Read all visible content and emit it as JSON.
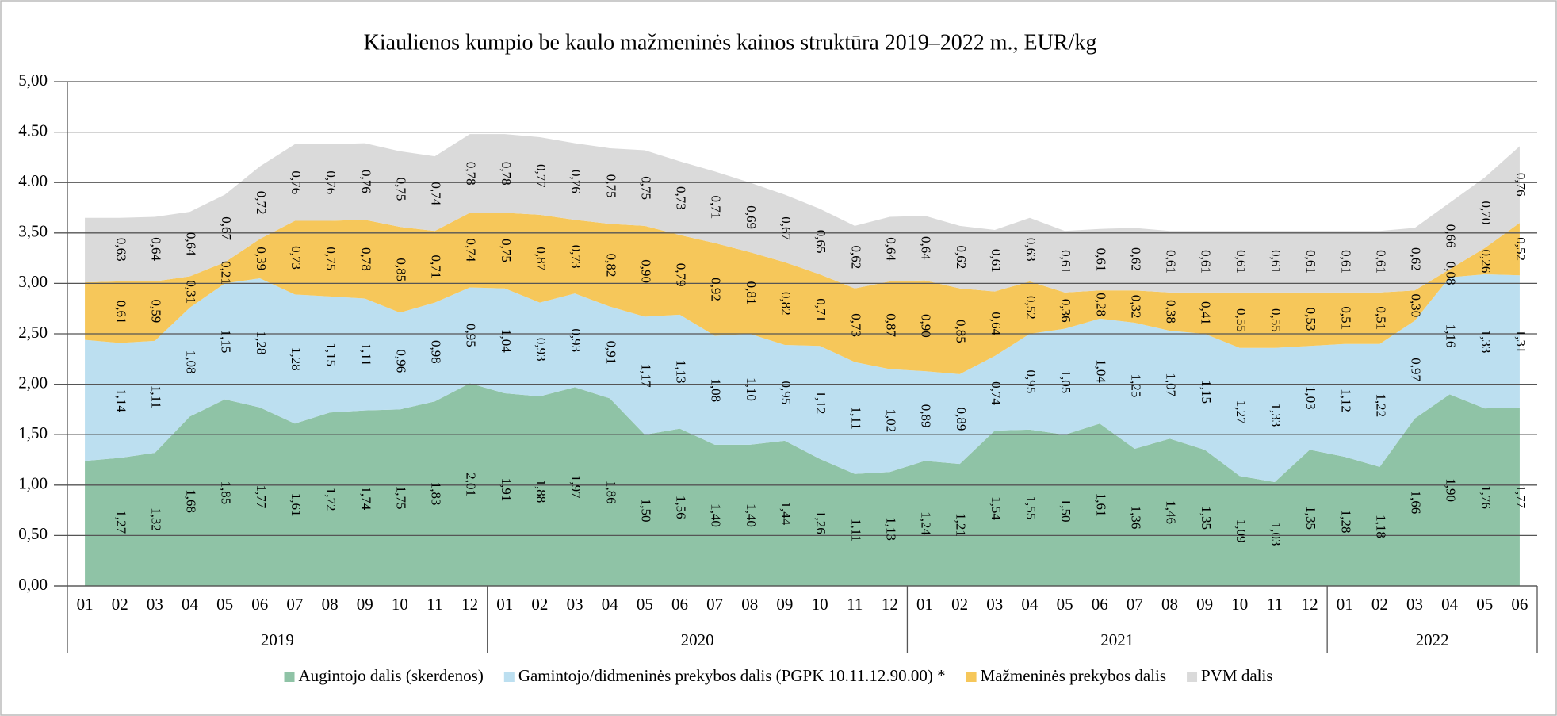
{
  "chart_data": {
    "type": "stacked_area",
    "title": "Kiaulienos kumpio be kaulo mažmeninės kainos struktūra 2019–2022 m., EUR/kg",
    "categories": [
      "01",
      "02",
      "03",
      "04",
      "05",
      "06",
      "07",
      "08",
      "09",
      "10",
      "11",
      "12",
      "01",
      "02",
      "03",
      "04",
      "05",
      "06",
      "07",
      "08",
      "09",
      "10",
      "11",
      "12",
      "01",
      "02",
      "03",
      "04",
      "05",
      "06",
      "07",
      "08",
      "09",
      "10",
      "11",
      "12",
      "01",
      "02",
      "03",
      "04",
      "05",
      "06"
    ],
    "year_groups": [
      "2019",
      "2020",
      "2021",
      "2022"
    ],
    "series": [
      {
        "name": "Augintojo dalis (skerdenos)",
        "color": "#8fc3a6",
        "values": [
          1.24,
          1.27,
          1.32,
          1.68,
          1.85,
          1.77,
          1.61,
          1.72,
          1.74,
          1.75,
          1.83,
          2.01,
          1.91,
          1.88,
          1.97,
          1.86,
          1.5,
          1.56,
          1.4,
          1.4,
          1.44,
          1.26,
          1.11,
          1.13,
          1.24,
          1.21,
          1.54,
          1.55,
          1.5,
          1.61,
          1.36,
          1.46,
          1.35,
          1.09,
          1.03,
          1.35,
          1.28,
          1.18,
          1.66,
          1.9,
          1.76,
          1.77
        ],
        "value_labels": [
          null,
          "1,27",
          "1,32",
          "1,68",
          "1,85",
          "1,77",
          "1,61",
          "1,72",
          "1,74",
          "1,75",
          "1,83",
          "2,01",
          "1,91",
          "1,88",
          "1,97",
          "1,86",
          "1,50",
          "1,56",
          "1,40",
          "1,40",
          "1,44",
          "1,26",
          "1,11",
          "1,13",
          "1,24",
          "1,21",
          "1,54",
          "1,55",
          "1,50",
          "1,61",
          "1,36",
          "1,46",
          "1,35",
          "1,09",
          "1,03",
          "1,35",
          "1,28",
          "1,18",
          "1,66",
          "1,90",
          "1,76",
          "1,77"
        ]
      },
      {
        "name": "Gamintojo/didmeninės prekybos dalis (PGPK 10.11.12.90.00) *",
        "color": "#bcdff0",
        "values": [
          1.2,
          1.14,
          1.11,
          1.08,
          1.15,
          1.28,
          1.28,
          1.15,
          1.11,
          0.96,
          0.98,
          0.95,
          1.04,
          0.93,
          0.93,
          0.91,
          1.17,
          1.13,
          1.08,
          1.1,
          0.95,
          1.12,
          1.11,
          1.02,
          0.89,
          0.89,
          0.74,
          0.95,
          1.05,
          1.04,
          1.25,
          1.07,
          1.15,
          1.27,
          1.33,
          1.03,
          1.12,
          1.22,
          0.97,
          1.16,
          1.33,
          1.31
        ],
        "value_labels": [
          null,
          "1,14",
          "1,11",
          "1,08",
          "1,15",
          "1,28",
          "1,28",
          "1,15",
          "1,11",
          "0,96",
          "0,98",
          "0,95",
          "1,04",
          "0,93",
          "0,93",
          "0,91",
          "1,17",
          "1,13",
          "1,08",
          "1,10",
          "0,95",
          "1,12",
          "1,11",
          "1,02",
          "0,89",
          "0,89",
          "0,74",
          "0,95",
          "1,05",
          "1,04",
          "1,25",
          "1,07",
          "1,15",
          "1,27",
          "1,33",
          "1,03",
          "1,12",
          "1,22",
          "0,97",
          "1,16",
          "1,33",
          "1,31"
        ]
      },
      {
        "name": "Mažmeninės prekybos dalis",
        "color": "#f6c75a",
        "values": [
          0.57,
          0.61,
          0.59,
          0.31,
          0.21,
          0.39,
          0.73,
          0.75,
          0.78,
          0.85,
          0.71,
          0.74,
          0.75,
          0.87,
          0.73,
          0.82,
          0.9,
          0.79,
          0.92,
          0.81,
          0.82,
          0.71,
          0.73,
          0.87,
          0.9,
          0.85,
          0.64,
          0.52,
          0.36,
          0.28,
          0.32,
          0.38,
          0.41,
          0.55,
          0.55,
          0.53,
          0.51,
          0.51,
          0.3,
          0.08,
          0.26,
          0.52
        ],
        "value_labels": [
          null,
          "0,61",
          "0,59",
          "0,31",
          "0,21",
          "0,39",
          "0,73",
          "0,75",
          "0,78",
          "0,85",
          "0,71",
          "0,74",
          "0,75",
          "0,87",
          "0,73",
          "0,82",
          "0,90",
          "0,79",
          "0,92",
          "0,81",
          "0,82",
          "0,71",
          "0,73",
          "0,87",
          "0,90",
          "0,85",
          "0,64",
          "0,52",
          "0,36",
          "0,28",
          "0,32",
          "0,38",
          "0,41",
          "0,55",
          "0,55",
          "0,53",
          "0,51",
          "0,51",
          "0,30",
          "0,08",
          "0,26",
          "0,52"
        ]
      },
      {
        "name": "PVM dalis",
        "color": "#dadada",
        "values": [
          0.64,
          0.63,
          0.64,
          0.64,
          0.67,
          0.72,
          0.76,
          0.76,
          0.76,
          0.75,
          0.74,
          0.78,
          0.78,
          0.77,
          0.76,
          0.75,
          0.75,
          0.73,
          0.71,
          0.69,
          0.67,
          0.65,
          0.62,
          0.64,
          0.64,
          0.62,
          0.61,
          0.63,
          0.61,
          0.61,
          0.62,
          0.61,
          0.61,
          0.61,
          0.61,
          0.61,
          0.61,
          0.61,
          0.62,
          0.66,
          0.7,
          0.76
        ],
        "value_labels": [
          null,
          "0,63",
          "0,64",
          "0,64",
          "0,67",
          "0,72",
          "0,76",
          "0,76",
          "0,76",
          "0,75",
          "0,74",
          "0,78",
          "0,78",
          "0,77",
          "0,76",
          "0,75",
          "0,75",
          "0,73",
          "0,71",
          "0,69",
          "0,67",
          "0,65",
          "0,62",
          "0,64",
          "0,64",
          "0,62",
          "0,61",
          "0,63",
          "0,61",
          "0,61",
          "0,62",
          "0,61",
          "0,61",
          "0,61",
          "0,61",
          "0,61",
          "0,61",
          "0,61",
          "0,62",
          "0,66",
          "0,70",
          "0,76"
        ]
      }
    ],
    "ylim": [
      0,
      5
    ],
    "yticks": [
      {
        "value": 0,
        "label": "0,00"
      },
      {
        "value": 0.5,
        "label": "0,50"
      },
      {
        "value": 1,
        "label": "1,00"
      },
      {
        "value": 1.5,
        "label": "1,50"
      },
      {
        "value": 2,
        "label": "2,00"
      },
      {
        "value": 2.5,
        "label": "2,50"
      },
      {
        "value": 3,
        "label": "3,00"
      },
      {
        "value": 3.5,
        "label": "3,50"
      },
      {
        "value": 4,
        "label": "4.00"
      },
      {
        "value": 4.5,
        "label": "4.50"
      },
      {
        "value": 5,
        "label": "5,00"
      }
    ],
    "grid": true,
    "legend": "bottom"
  }
}
